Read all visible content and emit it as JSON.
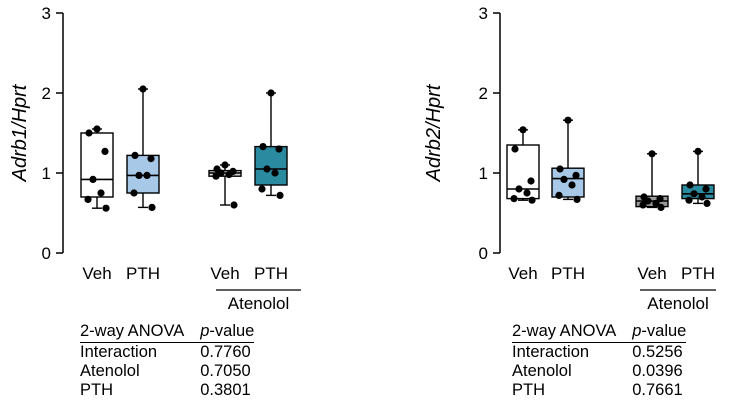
{
  "chart_data": [
    {
      "type": "box",
      "ylabel_gene": "Adrb1",
      "ylabel_ref": "Hprt",
      "ylim": [
        0,
        3
      ],
      "yticks": [
        "0",
        "1",
        "2",
        "3"
      ],
      "categories": [
        "Veh",
        "PTH",
        "Veh",
        "PTH"
      ],
      "group_label": "Atenolol",
      "boxes": [
        {
          "name": "Veh",
          "color": "#ffffff",
          "q1": 0.7,
          "median": 0.92,
          "q3": 1.5,
          "min": 0.56,
          "max": 1.55,
          "points": [
            1.55,
            1.5,
            1.27,
            0.92,
            0.75,
            0.67,
            0.56
          ]
        },
        {
          "name": "PTH",
          "color": "#a8c8e8",
          "q1": 0.75,
          "median": 0.97,
          "q3": 1.22,
          "min": 0.57,
          "max": 2.05,
          "points": [
            2.05,
            1.22,
            1.18,
            0.97,
            0.97,
            0.75,
            0.57
          ]
        },
        {
          "name": "Veh",
          "color": "#d4d4d4",
          "q1": 0.96,
          "median": 1.0,
          "q3": 1.03,
          "min": 0.6,
          "max": 1.1,
          "points": [
            1.1,
            1.05,
            1.02,
            1.0,
            0.98,
            0.96,
            0.6
          ]
        },
        {
          "name": "PTH",
          "color": "#2a8aa0",
          "q1": 0.85,
          "median": 1.05,
          "q3": 1.33,
          "min": 0.72,
          "max": 2.0,
          "points": [
            2.0,
            1.33,
            1.3,
            1.05,
            1.0,
            0.8,
            0.72
          ]
        }
      ],
      "stats": {
        "header_test": "2-way ANOVA",
        "header_p": "p",
        "header_value": "-value",
        "rows": [
          {
            "term": "Interaction",
            "p": "0.7760"
          },
          {
            "term": "Atenolol",
            "p": "0.7050"
          },
          {
            "term": "PTH",
            "p": "0.3801"
          }
        ]
      }
    },
    {
      "type": "box",
      "ylabel_gene": "Adrb2",
      "ylabel_ref": "Hprt",
      "ylim": [
        0,
        3
      ],
      "yticks": [
        "0",
        "1",
        "2",
        "3"
      ],
      "categories": [
        "Veh",
        "PTH",
        "Veh",
        "PTH"
      ],
      "group_label": "Atenolol",
      "boxes": [
        {
          "name": "Veh",
          "color": "#ffffff",
          "q1": 0.68,
          "median": 0.8,
          "q3": 1.35,
          "min": 0.66,
          "max": 1.54,
          "points": [
            1.54,
            1.3,
            0.9,
            0.8,
            0.75,
            0.68,
            0.66
          ]
        },
        {
          "name": "PTH",
          "color": "#a8c8e8",
          "q1": 0.7,
          "median": 0.93,
          "q3": 1.06,
          "min": 0.67,
          "max": 1.66,
          "points": [
            1.66,
            1.05,
            0.97,
            0.92,
            0.85,
            0.72,
            0.67
          ]
        },
        {
          "name": "Veh",
          "color": "#9a9a9a",
          "q1": 0.58,
          "median": 0.65,
          "q3": 0.71,
          "min": 0.57,
          "max": 1.24,
          "points": [
            1.24,
            0.7,
            0.68,
            0.65,
            0.62,
            0.6,
            0.57
          ]
        },
        {
          "name": "PTH",
          "color": "#2a8aa0",
          "q1": 0.68,
          "median": 0.74,
          "q3": 0.85,
          "min": 0.62,
          "max": 1.27,
          "points": [
            1.27,
            0.85,
            0.8,
            0.74,
            0.7,
            0.66,
            0.62
          ]
        }
      ],
      "stats": {
        "header_test": "2-way ANOVA",
        "header_p": "p",
        "header_value": "-value",
        "rows": [
          {
            "term": "Interaction",
            "p": "0.5256"
          },
          {
            "term": "Atenolol",
            "p": "0.0396"
          },
          {
            "term": "PTH",
            "p": "0.7661"
          }
        ]
      }
    }
  ]
}
